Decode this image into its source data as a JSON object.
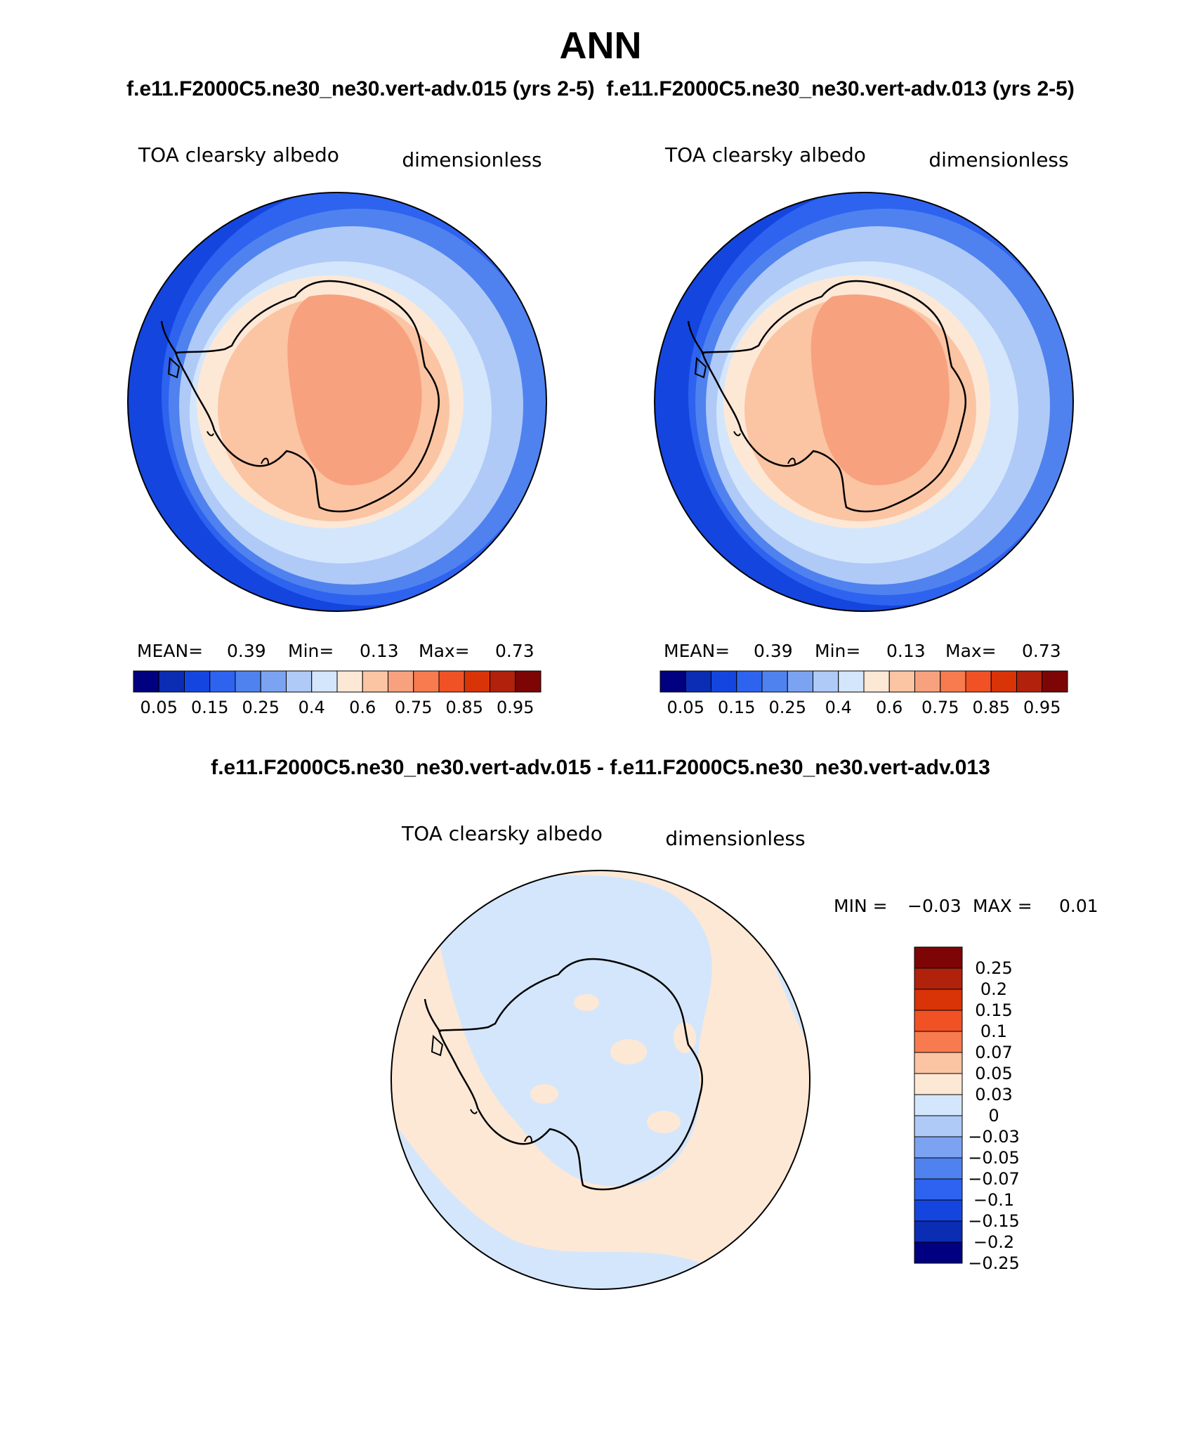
{
  "title": "ANN",
  "header": {
    "case_a": "f.e11.F2000C5.ne30_ne30.vert-adv.015 (yrs 2-5)",
    "case_b": "f.e11.F2000C5.ne30_ne30.vert-adv.013 (yrs 2-5)",
    "diff_title": "f.e11.F2000C5.ne30_ne30.vert-adv.015 - f.e11.F2000C5.ne30_ne30.vert-adv.013"
  },
  "chart_data": [
    {
      "type": "heatmap",
      "projection": "south-polar-stereographic",
      "title": "TOA clearsky albedo",
      "units": "dimensionless",
      "stats": {
        "mean_label": "MEAN=",
        "mean": "0.39",
        "min_label": "Min=",
        "min": "0.13",
        "max_label": "Max=",
        "max": "0.73"
      },
      "colorbar": {
        "levels": [
          "0.05",
          "0.1",
          "0.15",
          "0.2",
          "0.25",
          "0.3",
          "0.4",
          "0.5",
          "0.6",
          "0.7",
          "0.75",
          "0.8",
          "0.85",
          "0.9",
          "0.95"
        ],
        "tick_labels": [
          "0.05",
          "0.15",
          "0.25",
          "0.4",
          "0.6",
          "0.75",
          "0.85",
          "0.95"
        ],
        "colors": [
          "#000080",
          "#0b2db4",
          "#1446df",
          "#2e63f0",
          "#4f82ef",
          "#7ba3f2",
          "#afcaf7",
          "#d4e6fb",
          "#fde8d6",
          "#fbc4a3",
          "#f7a17e",
          "#f77b4e",
          "#f05225",
          "#d93308",
          "#b0220c",
          "#7e0505"
        ]
      }
    },
    {
      "type": "heatmap",
      "projection": "south-polar-stereographic",
      "title": "TOA clearsky albedo",
      "units": "dimensionless",
      "stats": {
        "mean_label": "MEAN=",
        "mean": "0.39",
        "min_label": "Min=",
        "min": "0.13",
        "max_label": "Max=",
        "max": "0.73"
      },
      "colorbar": {
        "levels": [
          "0.05",
          "0.1",
          "0.15",
          "0.2",
          "0.25",
          "0.3",
          "0.4",
          "0.5",
          "0.6",
          "0.7",
          "0.75",
          "0.8",
          "0.85",
          "0.9",
          "0.95"
        ],
        "tick_labels": [
          "0.05",
          "0.15",
          "0.25",
          "0.4",
          "0.6",
          "0.75",
          "0.85",
          "0.95"
        ],
        "colors": [
          "#000080",
          "#0b2db4",
          "#1446df",
          "#2e63f0",
          "#4f82ef",
          "#7ba3f2",
          "#afcaf7",
          "#d4e6fb",
          "#fde8d6",
          "#fbc4a3",
          "#f7a17e",
          "#f77b4e",
          "#f05225",
          "#d93308",
          "#b0220c",
          "#7e0505"
        ]
      }
    },
    {
      "type": "heatmap",
      "projection": "south-polar-stereographic",
      "title": "TOA clearsky albedo",
      "units": "dimensionless",
      "stats": {
        "min_label": "MIN =",
        "min": "−0.03",
        "max_label": "MAX =",
        "max": "0.01"
      },
      "colorbar": {
        "tick_labels": [
          "0.25",
          "0.2",
          "0.15",
          "0.1",
          "0.07",
          "0.05",
          "0.03",
          "0",
          "−0.03",
          "−0.05",
          "−0.07",
          "−0.1",
          "−0.15",
          "−0.2",
          "−0.25"
        ],
        "colors": [
          "#7e0505",
          "#b0220c",
          "#d93308",
          "#f05225",
          "#f77b4e",
          "#fbc4a3",
          "#fde8d6",
          "#d4e6fb",
          "#afcaf7",
          "#7ba3f2",
          "#4f82ef",
          "#2e63f0",
          "#1446df",
          "#0b2db4",
          "#000080"
        ]
      }
    }
  ]
}
